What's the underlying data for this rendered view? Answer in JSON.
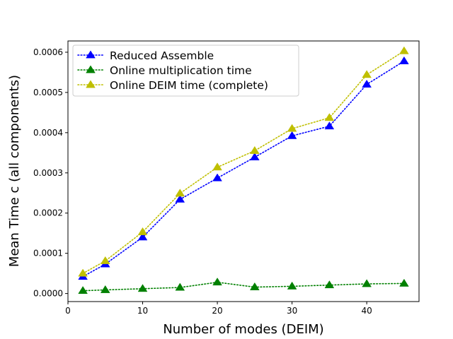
{
  "chart_data": {
    "type": "line",
    "xlabel": "Number of modes (DEIM)",
    "ylabel": "Mean Time c (all components)",
    "xlim": [
      0,
      47
    ],
    "ylim": [
      -2e-05,
      0.000628
    ],
    "xticks": [
      0,
      10,
      20,
      30,
      40
    ],
    "xtick_labels": [
      "0",
      "10",
      "20",
      "30",
      "40"
    ],
    "yticks": [
      0.0,
      0.0001,
      0.0002,
      0.0003,
      0.0004,
      0.0005,
      0.0006
    ],
    "ytick_labels": [
      "0.0000",
      "0.0001",
      "0.0002",
      "0.0003",
      "0.0004",
      "0.0005",
      "0.0006"
    ],
    "grid": false,
    "legend_position": "top-left",
    "x": [
      2,
      5,
      10,
      15,
      20,
      25,
      30,
      35,
      40,
      45
    ],
    "series": [
      {
        "name": "Reduced Assemble",
        "color": "#0000ff",
        "marker": "triangle-up",
        "line_style": "dotted",
        "values": [
          4.2e-05,
          7.3e-05,
          0.00014,
          0.000234,
          0.000287,
          0.000339,
          0.000392,
          0.000416,
          0.00052,
          0.000578
        ]
      },
      {
        "name": "Online multiplication time",
        "color": "#008000",
        "marker": "triangle-up",
        "line_style": "dotted",
        "values": [
          7e-06,
          9e-06,
          1.2e-05,
          1.5e-05,
          2.8e-05,
          1.6e-05,
          1.8e-05,
          2.1e-05,
          2.4e-05,
          2.5e-05
        ]
      },
      {
        "name": "Online DEIM time (complete)",
        "color": "#bfbf00",
        "marker": "triangle-up",
        "line_style": "dotted",
        "values": [
          5e-05,
          8.1e-05,
          0.000153,
          0.000249,
          0.000314,
          0.000355,
          0.00041,
          0.000437,
          0.000544,
          0.000603
        ]
      }
    ]
  }
}
